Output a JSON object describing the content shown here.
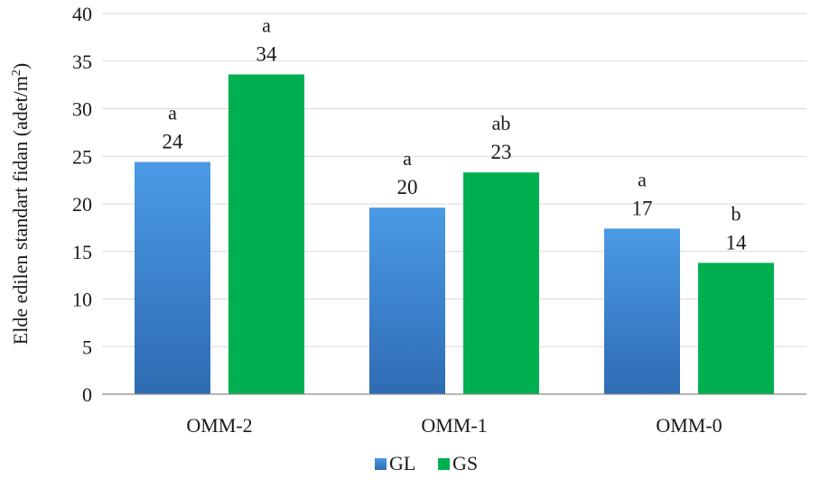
{
  "chart_data": {
    "type": "bar",
    "title": "",
    "xlabel": "",
    "ylabel": "Elde edilen standart fidan (adet/m",
    "ylabel_sup": "2",
    "ylabel_suffix": ")",
    "ylim": [
      0,
      40
    ],
    "yticks": [
      0,
      5,
      10,
      15,
      20,
      25,
      30,
      35,
      40
    ],
    "grid": true,
    "legend": "bottom",
    "categories": [
      "OMM-2",
      "OMM-1",
      "OMM-0"
    ],
    "series": [
      {
        "name": "GL",
        "color": "#3f86d6",
        "color_light": "#4a9ae6",
        "color_dark": "#2f6bb3",
        "values": [
          24.4,
          19.6,
          17.4
        ],
        "labels": [
          "24",
          "20",
          "17"
        ],
        "letters": [
          "a",
          "a",
          "a"
        ]
      },
      {
        "name": "GS",
        "color": "#00b050",
        "values": [
          33.6,
          23.3,
          13.8
        ],
        "labels": [
          "34",
          "23",
          "14"
        ],
        "letters": [
          "a",
          "ab",
          "b"
        ]
      }
    ]
  }
}
